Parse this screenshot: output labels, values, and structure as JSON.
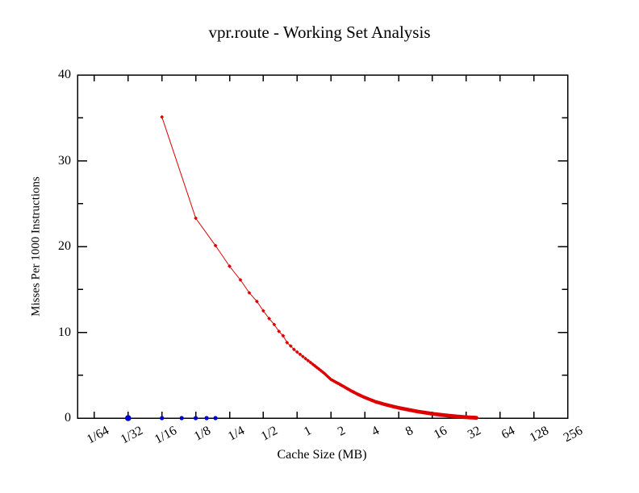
{
  "page": {
    "background": "#ffffff"
  },
  "chart_data": {
    "type": "line",
    "title": "vpr.route - Working Set Analysis",
    "xlabel": "Cache Size (MB)",
    "ylabel": "Misses Per 1000 Instructions",
    "x_scale": "log2",
    "x_log2_range": [
      -6.5,
      8
    ],
    "ylim": [
      0,
      40
    ],
    "grid": false,
    "legend": "none",
    "frame_color": "#000000",
    "y_major_ticks": [
      0,
      10,
      20,
      30,
      40
    ],
    "y_minor_ticks": [
      5,
      15,
      25,
      35
    ],
    "x_ticks": [
      {
        "label": "1/64",
        "value": 0.015625
      },
      {
        "label": "1/32",
        "value": 0.03125
      },
      {
        "label": "1/16",
        "value": 0.0625
      },
      {
        "label": "1/8",
        "value": 0.125
      },
      {
        "label": "1/4",
        "value": 0.25
      },
      {
        "label": "1/2",
        "value": 0.5
      },
      {
        "label": "1",
        "value": 1
      },
      {
        "label": "2",
        "value": 2
      },
      {
        "label": "4",
        "value": 4
      },
      {
        "label": "8",
        "value": 8
      },
      {
        "label": "16",
        "value": 16
      },
      {
        "label": "32",
        "value": 32
      },
      {
        "label": "64",
        "value": 64
      },
      {
        "label": "128",
        "value": 128
      },
      {
        "label": "256",
        "value": 256
      }
    ],
    "series": [
      {
        "name": "cache-miss-rate-curve",
        "color": "#dd0000",
        "marker": "diamond",
        "marker_size": 2.4,
        "line": true,
        "line_width": 1,
        "x_start_mb": 0.0625,
        "x_end_mb": 40,
        "sample_step_mb": 0.0625,
        "anchors_mb_misses": [
          [
            0.0625,
            35.1
          ],
          [
            0.125,
            23.3
          ],
          [
            0.1875,
            20.1
          ],
          [
            0.25,
            17.7
          ],
          [
            0.3125,
            16.1
          ],
          [
            0.375,
            14.6
          ],
          [
            0.4375,
            13.6
          ],
          [
            0.5,
            12.5
          ],
          [
            0.5625,
            11.6
          ],
          [
            0.625,
            10.9
          ],
          [
            0.6875,
            10.1
          ],
          [
            0.75,
            9.6
          ],
          [
            0.8125,
            8.8
          ],
          [
            0.875,
            8.4
          ],
          [
            0.9375,
            8.0
          ],
          [
            1.0,
            7.7
          ],
          [
            1.25,
            6.7
          ],
          [
            1.5,
            5.9
          ],
          [
            1.75,
            5.2
          ],
          [
            2.0,
            4.5
          ],
          [
            2.5,
            3.8
          ],
          [
            3.0,
            3.2
          ],
          [
            3.5,
            2.75
          ],
          [
            4.0,
            2.4
          ],
          [
            5.0,
            1.9
          ],
          [
            6.0,
            1.6
          ],
          [
            7.0,
            1.38
          ],
          [
            8.0,
            1.2
          ],
          [
            10,
            0.95
          ],
          [
            12,
            0.75
          ],
          [
            14,
            0.62
          ],
          [
            16,
            0.5
          ],
          [
            20,
            0.35
          ],
          [
            24,
            0.24
          ],
          [
            28,
            0.16
          ],
          [
            32,
            0.1
          ],
          [
            36,
            0.06
          ],
          [
            40,
            0.03
          ]
        ]
      },
      {
        "name": "working-set-size-markers",
        "color": "#0000cc",
        "marker": "circle",
        "line": false,
        "points_mb_misses_radius": [
          [
            0.03125,
            0,
            3.8
          ],
          [
            0.0625,
            0,
            2.6
          ],
          [
            0.09375,
            0,
            2.6
          ],
          [
            0.125,
            0,
            2.6
          ],
          [
            0.15625,
            0,
            2.6
          ],
          [
            0.1875,
            0,
            2.6
          ]
        ]
      }
    ]
  }
}
